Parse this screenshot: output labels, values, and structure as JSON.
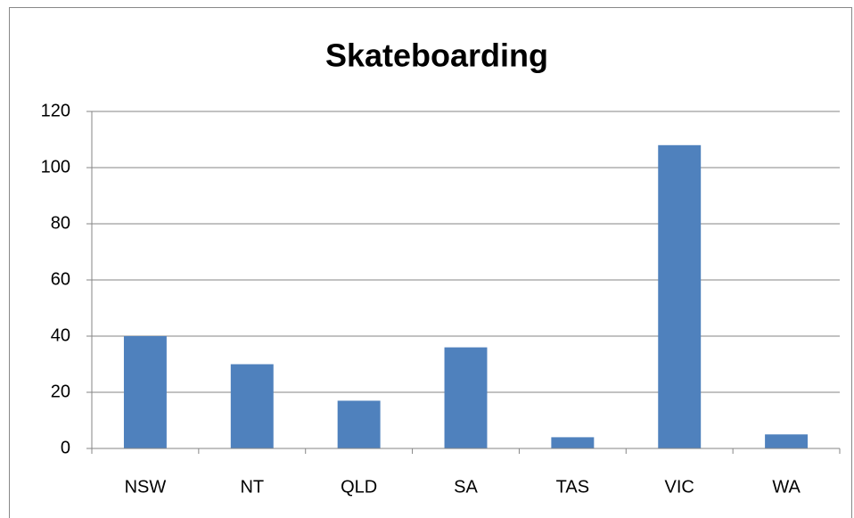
{
  "chart_data": {
    "type": "bar",
    "title": "Skateboarding",
    "categories": [
      "NSW",
      "NT",
      "QLD",
      "SA",
      "TAS",
      "VIC",
      "WA"
    ],
    "values": [
      40,
      30,
      17,
      36,
      4,
      108,
      5
    ],
    "color": "#4f81bd",
    "ylim": [
      0,
      120
    ],
    "yticks": [
      0,
      20,
      40,
      60,
      80,
      100,
      120
    ],
    "grid": true
  }
}
